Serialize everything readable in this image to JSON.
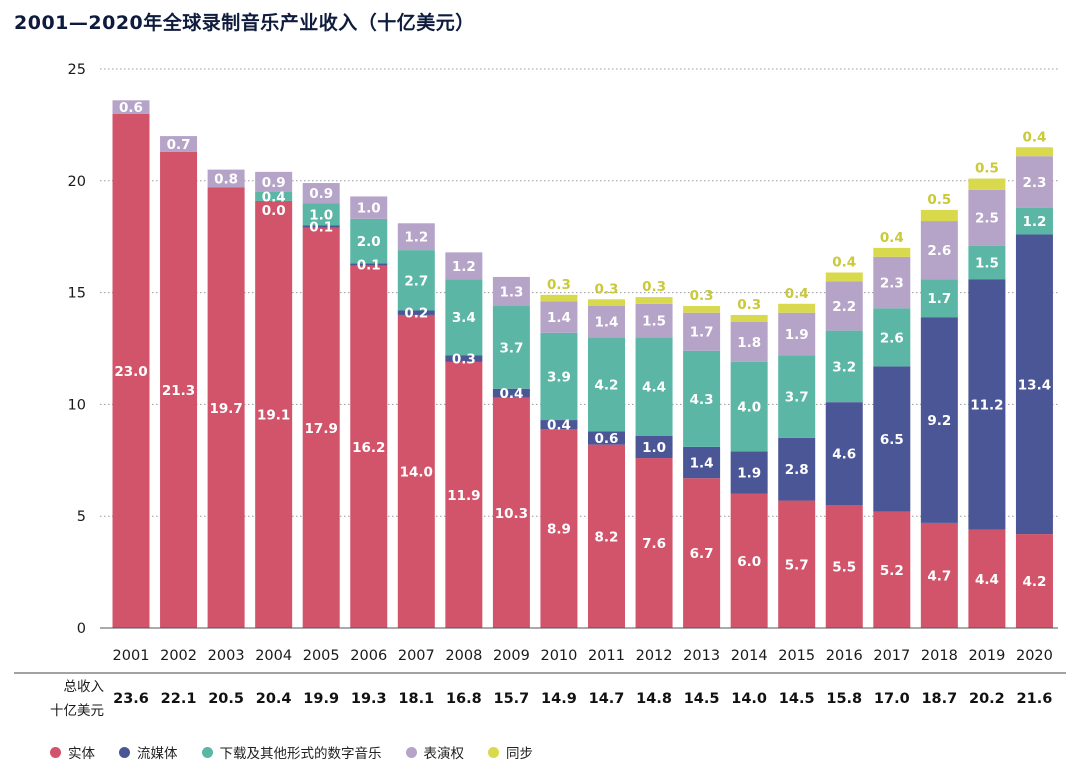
{
  "title": "2001—2020年全球录制音乐产业收入（十亿美元）",
  "chart_data": {
    "type": "bar",
    "stacked": true,
    "title": "2001—2020年全球录制音乐产业收入（十亿美元）",
    "xlabel": "",
    "ylabel": "",
    "ylim": [
      0,
      25
    ],
    "yticks": [
      "0",
      "5",
      "10",
      "15",
      "20",
      "25"
    ],
    "grid": true,
    "legend_position": "bottom-left",
    "categories": [
      "2001",
      "2002",
      "2003",
      "2004",
      "2005",
      "2006",
      "2007",
      "2008",
      "2009",
      "2010",
      "2011",
      "2012",
      "2013",
      "2014",
      "2015",
      "2016",
      "2017",
      "2018",
      "2019",
      "2020"
    ],
    "series": [
      {
        "name": "实体",
        "color": "#d1546a",
        "values": [
          23.0,
          21.3,
          19.7,
          19.1,
          17.9,
          16.2,
          14.0,
          11.9,
          10.3,
          8.9,
          8.2,
          7.6,
          6.7,
          6.0,
          5.7,
          5.5,
          5.2,
          4.7,
          4.4,
          4.2
        ]
      },
      {
        "name": "流媒体",
        "color": "#4b5696",
        "values": [
          null,
          null,
          null,
          null,
          0.1,
          0.1,
          0.2,
          0.3,
          0.4,
          0.4,
          0.6,
          1.0,
          1.4,
          1.9,
          2.8,
          4.6,
          6.5,
          9.2,
          11.2,
          13.4
        ]
      },
      {
        "name": "下载及其他形式的数字音乐",
        "color": "#5bb6a6",
        "values": [
          null,
          null,
          null,
          0.4,
          1.0,
          2.0,
          2.7,
          3.4,
          3.7,
          3.9,
          4.2,
          4.4,
          4.3,
          4.0,
          3.7,
          3.2,
          2.6,
          1.7,
          1.5,
          1.2
        ]
      },
      {
        "name": "表演权",
        "color": "#b5a3c8",
        "values": [
          0.6,
          0.7,
          0.8,
          0.9,
          0.9,
          1.0,
          1.2,
          1.2,
          1.3,
          1.4,
          1.4,
          1.5,
          1.7,
          1.8,
          1.9,
          2.2,
          2.3,
          2.6,
          2.5,
          2.3
        ]
      },
      {
        "name": "同步",
        "color": "#d9d94e",
        "values": [
          null,
          null,
          null,
          null,
          null,
          null,
          null,
          null,
          null,
          0.3,
          0.3,
          0.3,
          0.3,
          0.3,
          0.4,
          0.4,
          0.4,
          0.5,
          0.5,
          0.4
        ]
      }
    ],
    "extra_labels": [
      {
        "category": "2004",
        "series": "流媒体",
        "text": "0.0"
      }
    ],
    "totals_label": "总收入",
    "totals_unit": "十亿美元",
    "totals": [
      "23.6",
      "22.1",
      "20.5",
      "20.4",
      "19.9",
      "19.3",
      "18.1",
      "16.8",
      "15.7",
      "14.9",
      "14.7",
      "14.8",
      "14.5",
      "14.0",
      "14.5",
      "15.8",
      "17.0",
      "18.7",
      "20.2",
      "21.6"
    ]
  }
}
